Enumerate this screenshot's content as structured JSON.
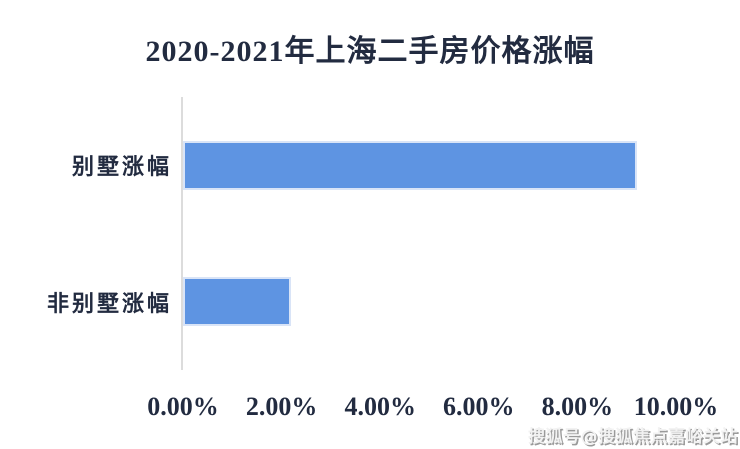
{
  "page": {
    "watermark": "搜狐号@搜狐焦点嘉峪关站"
  },
  "colors": {
    "bar_fill": "#5E94E2",
    "bar_border": "#D9E4F7",
    "axis_line": "#DCDCDC",
    "text": "#222B40",
    "watermark_shadow": "#9A9A9A",
    "background": "#FFFFFF"
  },
  "chart_data": {
    "type": "bar",
    "orientation": "horizontal",
    "title": "2020-2021年上海二手房价格涨幅",
    "categories": [
      "别墅涨幅",
      "非别墅涨幅"
    ],
    "values": [
      9.2,
      2.2
    ],
    "unit": "%",
    "x_tick_labels": [
      "0.00%",
      "2.00%",
      "4.00%",
      "6.00%",
      "8.00%",
      "10.00%"
    ],
    "xlim": [
      0,
      10
    ],
    "grid": false,
    "legend": false,
    "bar_color": "#5E94E2"
  }
}
